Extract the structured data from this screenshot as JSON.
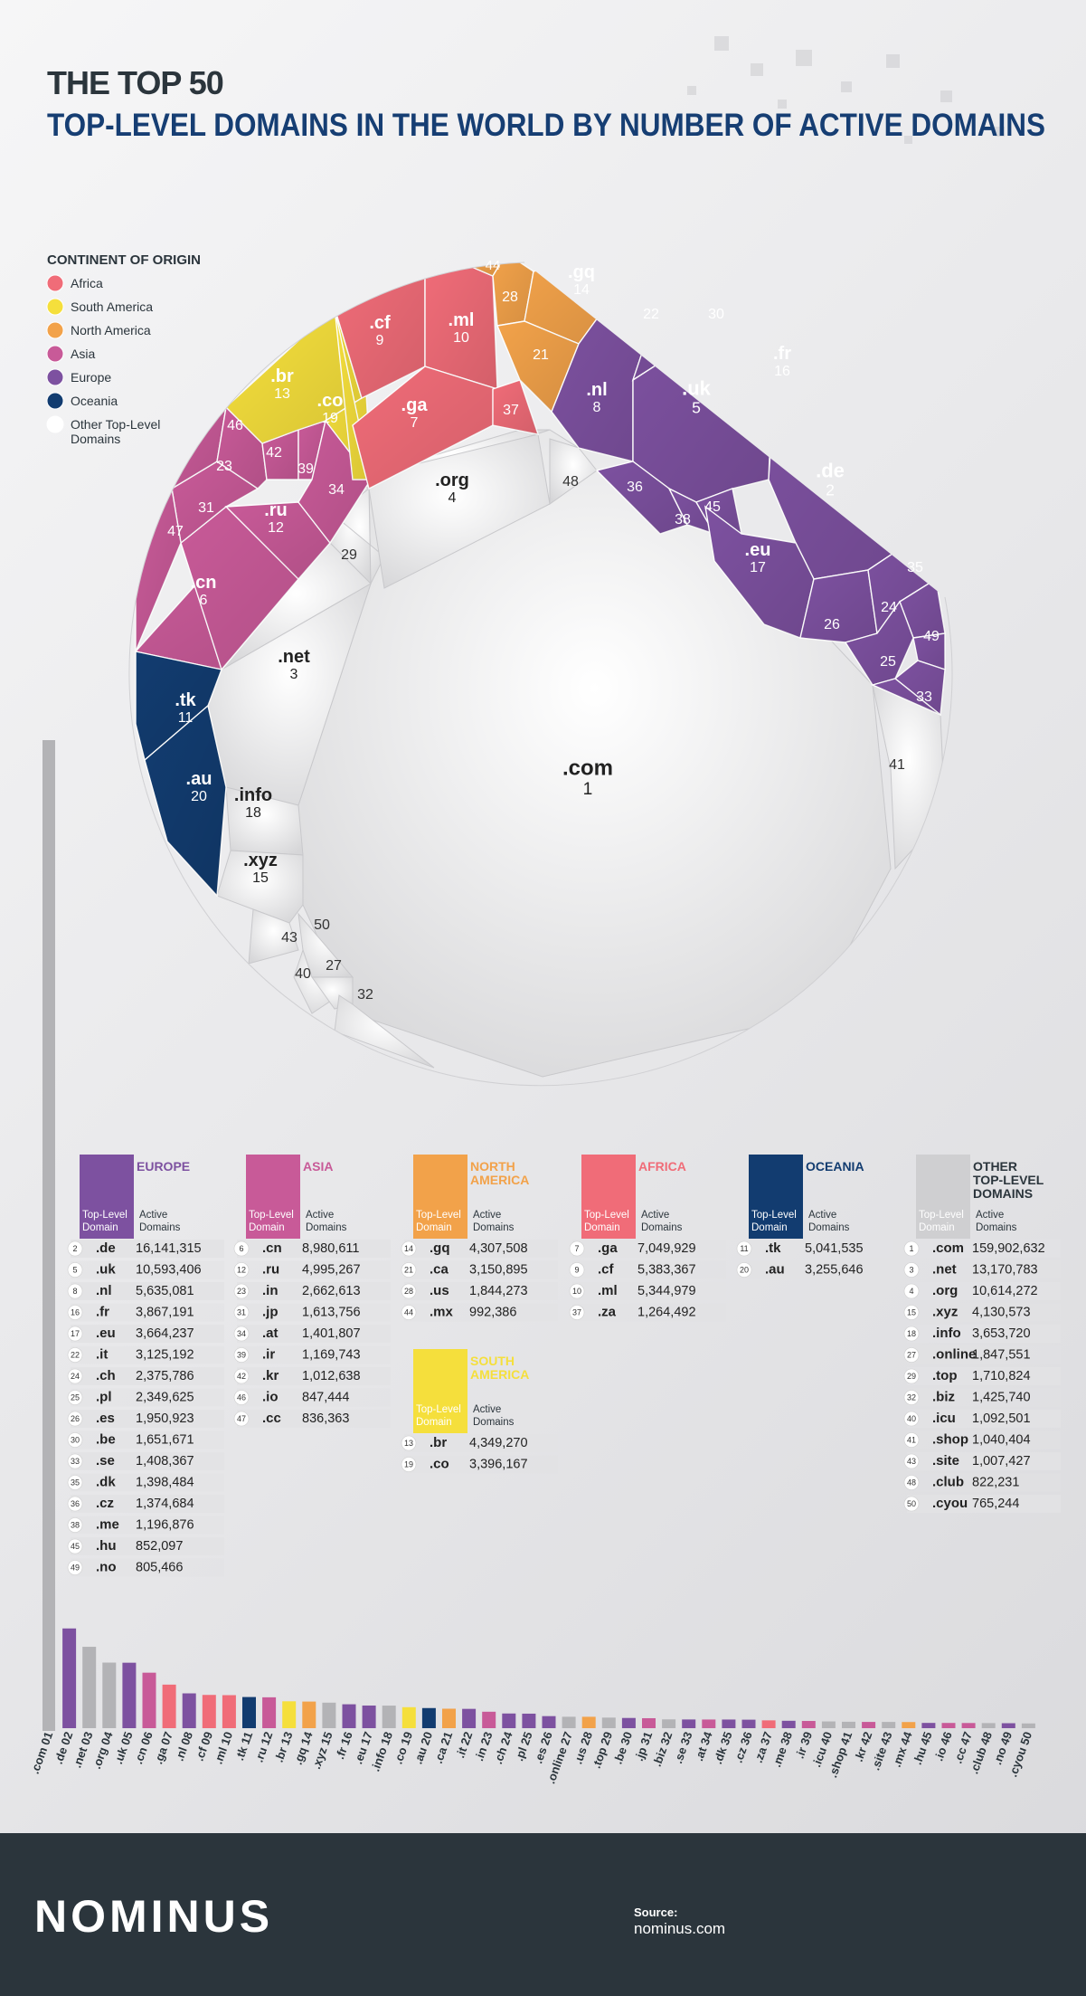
{
  "header": {
    "title_line1": "THE TOP 50",
    "title_line2": "TOP-LEVEL DOMAINS IN THE WORLD BY NUMBER OF ACTIVE DOMAINS"
  },
  "legend": {
    "title": "CONTINENT OF ORIGIN",
    "items": [
      {
        "key": "africa",
        "label": "Africa",
        "color": "#f06c78"
      },
      {
        "key": "southamerica",
        "label": "South America",
        "color": "#f5df3c"
      },
      {
        "key": "northamerica",
        "label": "North America",
        "color": "#f2a24a"
      },
      {
        "key": "asia",
        "label": "Asia",
        "color": "#c85a98"
      },
      {
        "key": "europe",
        "label": "Europe",
        "color": "#7d51a0"
      },
      {
        "key": "oceania",
        "label": "Oceania",
        "color": "#123c70"
      },
      {
        "key": "other",
        "label": "Other Top-Level Domains",
        "color": "#ffffff"
      }
    ]
  },
  "colors": {
    "europe": "#7d51a0",
    "asia": "#c85a98",
    "northamerica": "#f2a24a",
    "southamerica": "#f5df3c",
    "africa": "#f06c78",
    "oceania": "#123c70",
    "other": "#d4d4d6",
    "title_dark": "#2b353c",
    "title_blue": "#163e73"
  },
  "tables": [
    {
      "key": "europe",
      "title": "EUROPE",
      "col1": "Top-Level Domain",
      "col2": "Active Domains",
      "rows": [
        [
          2,
          ".de",
          "16,141,315"
        ],
        [
          5,
          ".uk",
          "10,593,406"
        ],
        [
          8,
          ".nl",
          "5,635,081"
        ],
        [
          16,
          ".fr",
          "3,867,191"
        ],
        [
          17,
          ".eu",
          "3,664,237"
        ],
        [
          22,
          ".it",
          "3,125,192"
        ],
        [
          24,
          ".ch",
          "2,375,786"
        ],
        [
          25,
          ".pl",
          "2,349,625"
        ],
        [
          26,
          ".es",
          "1,950,923"
        ],
        [
          30,
          ".be",
          "1,651,671"
        ],
        [
          33,
          ".se",
          "1,408,367"
        ],
        [
          35,
          ".dk",
          "1,398,484"
        ],
        [
          36,
          ".cz",
          "1,374,684"
        ],
        [
          38,
          ".me",
          "1,196,876"
        ],
        [
          45,
          ".hu",
          "852,097"
        ],
        [
          49,
          ".no",
          "805,466"
        ]
      ]
    },
    {
      "key": "asia",
      "title": "ASIA",
      "col1": "Top-Level Domain",
      "col2": "Active Domains",
      "rows": [
        [
          6,
          ".cn",
          "8,980,611"
        ],
        [
          12,
          ".ru",
          "4,995,267"
        ],
        [
          23,
          ".in",
          "2,662,613"
        ],
        [
          31,
          ".jp",
          "1,613,756"
        ],
        [
          34,
          ".at",
          "1,401,807"
        ],
        [
          39,
          ".ir",
          "1,169,743"
        ],
        [
          42,
          ".kr",
          "1,012,638"
        ],
        [
          46,
          ".io",
          "847,444"
        ],
        [
          47,
          ".cc",
          "836,363"
        ]
      ]
    },
    {
      "key": "northamerica",
      "title": "NORTH AMERICA",
      "col1": "Top-Level Domain",
      "col2": "Active Domains",
      "rows": [
        [
          14,
          ".gq",
          "4,307,508"
        ],
        [
          21,
          ".ca",
          "3,150,895"
        ],
        [
          28,
          ".us",
          "1,844,273"
        ],
        [
          44,
          ".mx",
          "992,386"
        ]
      ]
    },
    {
      "key": "southamerica",
      "title": "SOUTH AMERICA",
      "col1": "Top-Level Domain",
      "col2": "Active Domains",
      "rows": [
        [
          13,
          ".br",
          "4,349,270"
        ],
        [
          19,
          ".co",
          "3,396,167"
        ]
      ]
    },
    {
      "key": "africa",
      "title": "AFRICA",
      "col1": "Top-Level Domain",
      "col2": "Active Domains",
      "rows": [
        [
          7,
          ".ga",
          "7,049,929"
        ],
        [
          9,
          ".cf",
          "5,383,367"
        ],
        [
          10,
          ".ml",
          "5,344,979"
        ],
        [
          37,
          ".za",
          "1,264,492"
        ]
      ]
    },
    {
      "key": "oceania",
      "title": "OCEANIA",
      "col1": "Top-Level Domain",
      "col2": "Active Domains",
      "rows": [
        [
          11,
          ".tk",
          "5,041,535"
        ],
        [
          20,
          ".au",
          "3,255,646"
        ]
      ]
    },
    {
      "key": "other",
      "title": "OTHER TOP-LEVEL DOMAINS",
      "col1": "Top-Level Domain",
      "col2": "Active Domains",
      "rows": [
        [
          1,
          ".com",
          "159,902,632"
        ],
        [
          3,
          ".net",
          "13,170,783"
        ],
        [
          4,
          ".org",
          "10,614,272"
        ],
        [
          15,
          ".xyz",
          "4,130,573"
        ],
        [
          18,
          ".info",
          "3,653,720"
        ],
        [
          27,
          ".online",
          "1,847,551"
        ],
        [
          29,
          ".top",
          "1,710,824"
        ],
        [
          32,
          ".biz",
          "1,425,740"
        ],
        [
          40,
          ".icu",
          "1,092,501"
        ],
        [
          41,
          ".shop",
          "1,040,404"
        ],
        [
          43,
          ".site",
          "1,007,427"
        ],
        [
          48,
          ".club",
          "822,231"
        ],
        [
          50,
          ".cyou",
          "765,244"
        ]
      ]
    }
  ],
  "chart_data": {
    "type": "bar",
    "categories": [
      ".com 01",
      ".de 02",
      ".net 03",
      ".org 04",
      ".uk 05",
      ".cn 06",
      ".ga 07",
      ".nl 08",
      ".cf 09",
      ".ml 10",
      ".tk 11",
      ".ru 12",
      ".br 13",
      ".gq 14",
      ".xyz 15",
      ".fr 16",
      ".eu 17",
      ".info 18",
      ".co 19",
      ".au 20",
      ".ca 21",
      ".it 22",
      ".in 23",
      ".ch 24",
      ".pl 25",
      ".es 26",
      ".online 27",
      ".us 28",
      ".top 29",
      ".be 30",
      ".jp 31",
      ".biz 32",
      ".se 33",
      ".at 34",
      ".dk 35",
      ".cz 36",
      ".za 37",
      ".me 38",
      ".ir 39",
      ".icu 40",
      ".shop 41",
      ".kr 42",
      ".site 43",
      ".mx 44",
      ".hu 45",
      ".io 46",
      ".cc 47",
      ".club 48",
      ".no 49",
      ".cyou 50"
    ],
    "values": [
      159902632,
      16141315,
      13170783,
      10614272,
      10593406,
      8980611,
      7049929,
      5635081,
      5383367,
      5344979,
      5041535,
      4995267,
      4349270,
      4307508,
      4130573,
      3867191,
      3664237,
      3653720,
      3396167,
      3255646,
      3150895,
      3125192,
      2662613,
      2375786,
      2349625,
      1950923,
      1847551,
      1844273,
      1710824,
      1651671,
      1613756,
      1425740,
      1408367,
      1401807,
      1398484,
      1374684,
      1264492,
      1196876,
      1169743,
      1092501,
      1040404,
      1012638,
      1007427,
      992386,
      852097,
      847444,
      836363,
      822231,
      805466,
      765244
    ],
    "groups": [
      "other",
      "europe",
      "other",
      "other",
      "europe",
      "asia",
      "africa",
      "europe",
      "africa",
      "africa",
      "oceania",
      "asia",
      "southamerica",
      "northamerica",
      "other",
      "europe",
      "europe",
      "other",
      "southamerica",
      "oceania",
      "northamerica",
      "europe",
      "asia",
      "europe",
      "europe",
      "europe",
      "other",
      "northamerica",
      "other",
      "europe",
      "asia",
      "other",
      "europe",
      "asia",
      "europe",
      "europe",
      "africa",
      "europe",
      "asia",
      "other",
      "other",
      "asia",
      "other",
      "northamerica",
      "europe",
      "asia",
      "asia",
      "other",
      "europe",
      "other"
    ]
  },
  "voronoi_labels": [
    {
      "name": ".com",
      "rank": "1"
    },
    {
      "name": ".net",
      "rank": "3"
    },
    {
      "name": ".org",
      "rank": "4"
    },
    {
      "name": ".info",
      "rank": "18"
    },
    {
      "name": ".xyz",
      "rank": "15"
    },
    {
      "name": ".tk",
      "rank": "11"
    },
    {
      "name": ".au",
      "rank": "20"
    },
    {
      "name": ".cn",
      "rank": "6"
    },
    {
      "name": ".ru",
      "rank": "12"
    },
    {
      "name": ".br",
      "rank": "13"
    },
    {
      "name": ".co",
      "rank": "19"
    },
    {
      "name": ".cf",
      "rank": "9"
    },
    {
      "name": ".ml",
      "rank": "10"
    },
    {
      "name": ".ga",
      "rank": "7"
    },
    {
      "name": ".gq",
      "rank": "14"
    },
    {
      "name": ".nl",
      "rank": "8"
    },
    {
      "name": ".uk",
      "rank": "5"
    },
    {
      "name": ".fr",
      "rank": "16"
    },
    {
      "name": ".de",
      "rank": "2"
    },
    {
      "name": ".eu",
      "rank": "17"
    },
    {
      "name": "",
      "rank": "29"
    },
    {
      "name": "",
      "rank": "48"
    },
    {
      "name": "",
      "rank": "41"
    },
    {
      "name": "",
      "rank": "50"
    },
    {
      "name": "",
      "rank": "43"
    },
    {
      "name": "",
      "rank": "40"
    },
    {
      "name": "",
      "rank": "27"
    },
    {
      "name": "",
      "rank": "32"
    },
    {
      "name": "",
      "rank": "46"
    },
    {
      "name": "",
      "rank": "42"
    },
    {
      "name": "",
      "rank": "39"
    },
    {
      "name": "",
      "rank": "34"
    },
    {
      "name": "",
      "rank": "23"
    },
    {
      "name": "",
      "rank": "31"
    },
    {
      "name": "",
      "rank": "47"
    },
    {
      "name": "",
      "rank": "44"
    },
    {
      "name": "",
      "rank": "28"
    },
    {
      "name": "",
      "rank": "21"
    },
    {
      "name": "",
      "rank": "37"
    },
    {
      "name": "",
      "rank": "22"
    },
    {
      "name": "",
      "rank": "30"
    },
    {
      "name": "",
      "rank": "36"
    },
    {
      "name": "",
      "rank": "38"
    },
    {
      "name": "",
      "rank": "45"
    },
    {
      "name": "",
      "rank": "35"
    },
    {
      "name": "",
      "rank": "24"
    },
    {
      "name": "",
      "rank": "49"
    },
    {
      "name": "",
      "rank": "26"
    },
    {
      "name": "",
      "rank": "25"
    },
    {
      "name": "",
      "rank": "33"
    }
  ],
  "footer": {
    "brand": "NOMINUS",
    "source_label": "Source:",
    "source_value": "nominus.com"
  }
}
